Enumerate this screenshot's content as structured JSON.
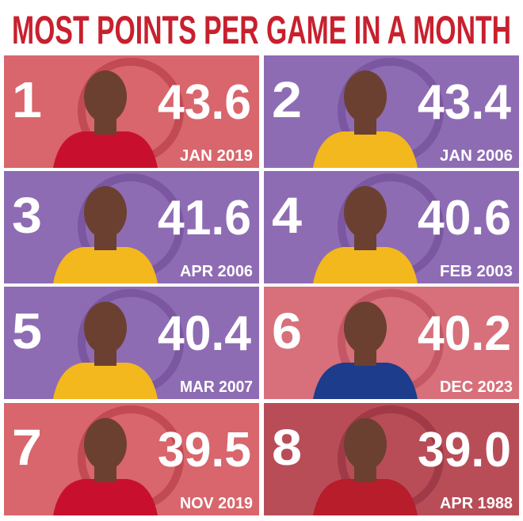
{
  "header": {
    "title": "MOST POINTS PER GAME IN A MONTH"
  },
  "cards": [
    {
      "rank": "1",
      "value": "43.6",
      "month": "JAN 2019"
    },
    {
      "rank": "2",
      "value": "43.4",
      "month": "JAN 2006"
    },
    {
      "rank": "3",
      "value": "41.6",
      "month": "APR 2006"
    },
    {
      "rank": "4",
      "value": "40.6",
      "month": "FEB 2003"
    },
    {
      "rank": "5",
      "value": "40.4",
      "month": "MAR 2007"
    },
    {
      "rank": "6",
      "value": "40.2",
      "month": "DEC 2023"
    },
    {
      "rank": "7",
      "value": "39.5",
      "month": "NOV 2019"
    },
    {
      "rank": "8",
      "value": "39.0",
      "month": "APR 1988"
    }
  ]
}
